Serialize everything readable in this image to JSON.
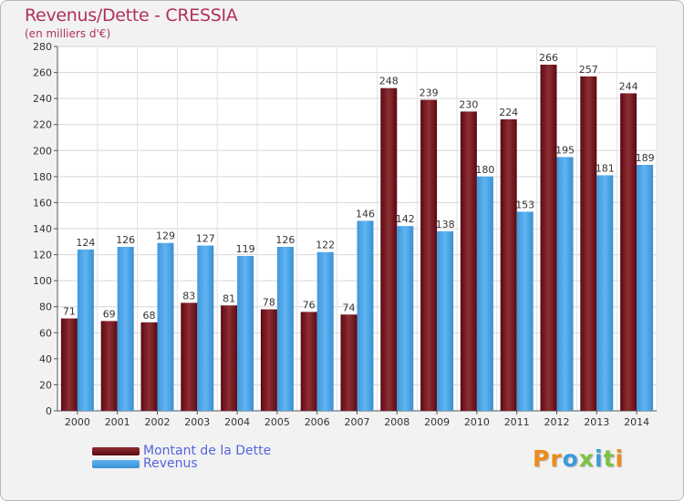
{
  "title": "Revenus/Dette - CRESSIA",
  "subtitle": "(en milliers d'€)",
  "colors": {
    "dette": "#7a1f28",
    "revenus": "#4da6e8",
    "title": "#b03060",
    "legend_text": "#5566dd"
  },
  "legend": [
    {
      "label": "Montant de la Dette",
      "color": "#7a1f28"
    },
    {
      "label": "Revenus",
      "color": "#4da6e8"
    }
  ],
  "logo": {
    "text": "Proxiti"
  },
  "chart_data": {
    "type": "bar",
    "title": "Revenus/Dette - CRESSIA",
    "subtitle": "(en milliers d'€)",
    "categories": [
      "2000",
      "2001",
      "2002",
      "2003",
      "2004",
      "2005",
      "2006",
      "2007",
      "2008",
      "2009",
      "2010",
      "2011",
      "2012",
      "2013",
      "2014"
    ],
    "series": [
      {
        "name": "Montant de la Dette",
        "values": [
          71,
          69,
          68,
          83,
          81,
          78,
          76,
          74,
          248,
          239,
          230,
          224,
          266,
          257,
          244
        ]
      },
      {
        "name": "Revenus",
        "values": [
          124,
          126,
          129,
          127,
          119,
          126,
          122,
          146,
          142,
          138,
          180,
          153,
          195,
          181,
          189
        ]
      }
    ],
    "ylim": [
      0,
      280
    ],
    "yticks": [
      0,
      20,
      40,
      60,
      80,
      100,
      120,
      140,
      160,
      180,
      200,
      220,
      240,
      260,
      280
    ],
    "grid": true,
    "legend_position": "bottom-left"
  }
}
